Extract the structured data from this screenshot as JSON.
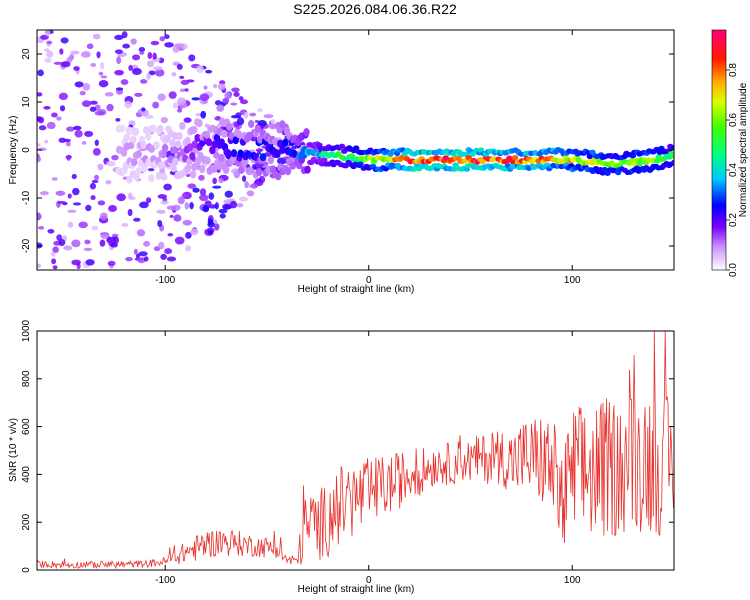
{
  "title": "S225.2026.084.06.36.R22",
  "chart_data": [
    {
      "type": "heatmap",
      "xlabel": "Height of straight line (km)",
      "ylabel": "Frequency (Hz)",
      "xlim": [
        -163,
        150
      ],
      "ylim": [
        -25,
        25
      ],
      "x_ticks": [
        -100,
        0,
        100
      ],
      "y_ticks": [
        -20,
        -10,
        0,
        10,
        20
      ],
      "colorbar": {
        "label": "Normalized spectral amplitude",
        "range": [
          0,
          0.96
        ],
        "ticks": [
          0.0,
          0.2,
          0.4,
          0.6,
          0.8
        ],
        "colors": [
          "#ffffff",
          "#8800ff",
          "#0000ff",
          "#00ccff",
          "#00ff66",
          "#66ff00",
          "#ffff00",
          "#ff8800",
          "#ff0000",
          "#ff0088"
        ]
      },
      "ridge": {
        "description": "Doppler ridge: scattered speckle below -40 km, narrow band near -2 Hz above -30 km",
        "x": [
          -163,
          -100,
          -80,
          -60,
          -40,
          -20,
          0,
          20,
          40,
          60,
          80,
          100,
          120,
          140,
          150
        ],
        "frequency": [
          0,
          -1,
          1,
          0,
          0,
          -1,
          -2,
          -2,
          -2,
          -2,
          -2,
          -2,
          -3,
          -2,
          -1
        ],
        "amplitude": [
          0.05,
          0.1,
          0.2,
          0.25,
          0.25,
          0.45,
          0.6,
          0.85,
          0.9,
          0.85,
          0.8,
          0.7,
          0.6,
          0.6,
          0.5
        ]
      }
    },
    {
      "type": "line",
      "xlabel": "Height of straight line (km)",
      "ylabel": "SNR (10 * v/v)",
      "xlim": [
        -163,
        150
      ],
      "ylim": [
        0,
        1000
      ],
      "x_ticks": [
        -100,
        0,
        100
      ],
      "y_ticks": [
        0,
        200,
        400,
        600,
        800,
        1000
      ],
      "color": "#e8322d",
      "series": [
        {
          "name": "SNR",
          "x": [
            -163,
            -150,
            -130,
            -110,
            -100,
            -95,
            -90,
            -85,
            -80,
            -75,
            -70,
            -65,
            -60,
            -55,
            -50,
            -45,
            -40,
            -35,
            -32,
            -28,
            -25,
            -20,
            -15,
            -10,
            -5,
            0,
            5,
            10,
            15,
            20,
            25,
            30,
            35,
            40,
            45,
            50,
            55,
            60,
            65,
            70,
            75,
            80,
            85,
            90,
            95,
            100,
            105,
            110,
            115,
            120,
            125,
            130,
            135,
            140,
            145,
            150
          ],
          "y_mean": [
            25,
            22,
            22,
            25,
            35,
            55,
            75,
            90,
            105,
            115,
            118,
            112,
            105,
            100,
            95,
            90,
            40,
            40,
            160,
            200,
            185,
            215,
            260,
            290,
            300,
            320,
            340,
            355,
            375,
            400,
            410,
            430,
            450,
            440,
            460,
            455,
            470,
            465,
            480,
            450,
            470,
            470,
            460,
            430,
            260,
            390,
            400,
            410,
            420,
            430,
            440,
            460,
            470,
            460,
            440,
            430
          ],
          "y_spread": [
            15,
            15,
            15,
            15,
            20,
            35,
            45,
            55,
            60,
            60,
            60,
            55,
            50,
            45,
            45,
            40,
            25,
            25,
            140,
            150,
            150,
            160,
            170,
            170,
            160,
            150,
            140,
            130,
            120,
            110,
            100,
            90,
            90,
            90,
            90,
            95,
            100,
            110,
            120,
            140,
            160,
            180,
            200,
            230,
            240,
            300,
            300,
            300,
            300,
            300,
            300,
            300,
            320,
            320,
            300,
            280
          ]
        }
      ]
    }
  ]
}
